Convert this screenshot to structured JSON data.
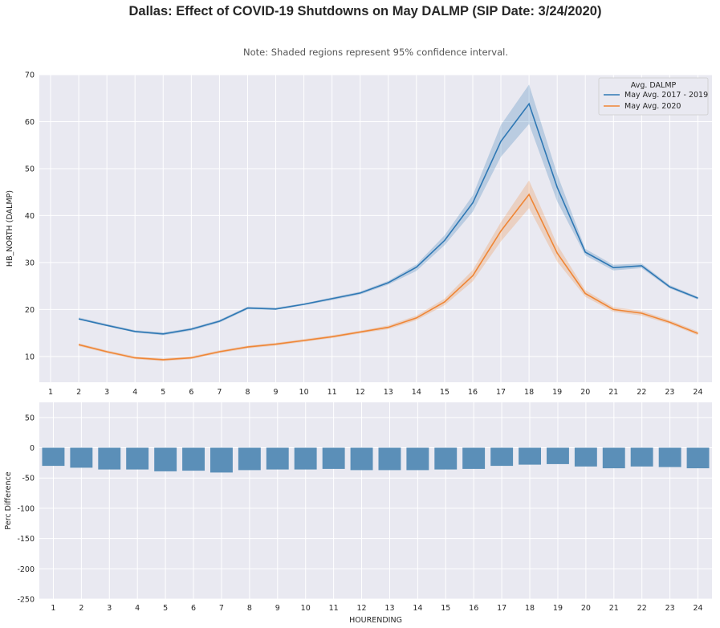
{
  "title": "Dallas: Effect of COVID-19 Shutdowns on May DALMP (SIP Date: 3/24/2020)",
  "subtitle": "Note: Shaded regions represent 95% confidence interval.",
  "colors": {
    "panel_bg": "#e9e9f1",
    "grid": "#ffffff",
    "series_blue": "#2f78b4",
    "series_orange": "#ef8636",
    "bar": "#5b8fb8"
  },
  "chart_data": [
    {
      "type": "line",
      "x": [
        1,
        2,
        3,
        4,
        5,
        6,
        7,
        8,
        9,
        10,
        11,
        12,
        13,
        14,
        15,
        16,
        17,
        18,
        19,
        20,
        21,
        22,
        23,
        24
      ],
      "xlim": [
        0.6,
        24.5
      ],
      "ylim": [
        4.5,
        70
      ],
      "yticks": [
        10,
        20,
        30,
        40,
        50,
        60,
        70
      ],
      "xlabel": "",
      "ylabel": "HB_NORTH (DALMP)",
      "grid": true,
      "legend": {
        "title": "Avg. DALMP",
        "placement": "top-right"
      },
      "series": [
        {
          "name": "May Avg. 2017 - 2019",
          "x": [
            2,
            3,
            4,
            5,
            6,
            7,
            8,
            9,
            10,
            11,
            12,
            13,
            14,
            15,
            16,
            17,
            18,
            19,
            20,
            21,
            22,
            23,
            24
          ],
          "values": [
            18.0,
            16.6,
            15.3,
            14.8,
            15.8,
            17.5,
            20.3,
            20.1,
            21.1,
            22.3,
            23.5,
            25.7,
            29.0,
            34.7,
            42.7,
            55.8,
            63.8,
            46.0,
            32.2,
            28.9,
            29.3,
            24.8,
            22.4
          ],
          "ci_low": [
            17.8,
            16.4,
            15.1,
            14.5,
            15.5,
            17.2,
            20.0,
            19.9,
            20.9,
            22.0,
            23.2,
            25.3,
            28.2,
            33.7,
            40.8,
            52.5,
            59.5,
            43.0,
            31.5,
            28.3,
            28.8,
            24.5,
            22.1
          ],
          "ci_high": [
            18.3,
            16.9,
            15.6,
            15.1,
            16.1,
            17.8,
            20.6,
            20.4,
            21.3,
            22.6,
            23.8,
            26.1,
            29.6,
            35.8,
            44.3,
            59.3,
            67.9,
            48.8,
            32.9,
            29.5,
            29.8,
            25.2,
            22.7
          ]
        },
        {
          "name": "May Avg. 2020",
          "x": [
            2,
            3,
            4,
            5,
            6,
            7,
            8,
            9,
            10,
            11,
            12,
            13,
            14,
            15,
            16,
            17,
            18,
            19,
            20,
            21,
            22,
            23,
            24
          ],
          "values": [
            12.5,
            11.0,
            9.7,
            9.3,
            9.7,
            11.0,
            12.0,
            12.6,
            13.4,
            14.2,
            15.2,
            16.2,
            18.2,
            21.6,
            27.2,
            36.7,
            44.5,
            32.0,
            23.4,
            20.0,
            19.2,
            17.3,
            14.9
          ],
          "ci_low": [
            12.2,
            10.7,
            9.4,
            9.0,
            9.4,
            10.7,
            11.7,
            12.3,
            13.1,
            13.9,
            14.9,
            15.8,
            17.7,
            20.9,
            26.0,
            34.5,
            41.6,
            30.2,
            22.7,
            19.5,
            18.7,
            16.9,
            14.5
          ],
          "ci_high": [
            12.8,
            11.3,
            10.0,
            9.6,
            10.0,
            11.3,
            12.3,
            12.9,
            13.7,
            14.5,
            15.5,
            16.6,
            18.7,
            22.3,
            28.4,
            38.6,
            47.5,
            33.8,
            24.1,
            20.5,
            19.7,
            17.7,
            15.3
          ]
        }
      ]
    },
    {
      "type": "bar",
      "categories": [
        "1",
        "2",
        "3",
        "4",
        "5",
        "6",
        "7",
        "8",
        "9",
        "10",
        "11",
        "12",
        "13",
        "14",
        "15",
        "16",
        "17",
        "18",
        "19",
        "20",
        "21",
        "22",
        "23",
        "24"
      ],
      "values": [
        -30,
        -33,
        -36,
        -36,
        -39,
        -38,
        -41,
        -37,
        -36,
        -36,
        -35,
        -37,
        -37,
        -37,
        -36,
        -35,
        -30,
        -28,
        -27,
        -31,
        -34,
        -31,
        -32,
        -34
      ],
      "ylim": [
        -250,
        75
      ],
      "yticks": [
        -250,
        -200,
        -150,
        -100,
        -50,
        0,
        50
      ],
      "xlabel": "HOURENDING",
      "ylabel": "Perc Difference",
      "grid": true
    }
  ]
}
